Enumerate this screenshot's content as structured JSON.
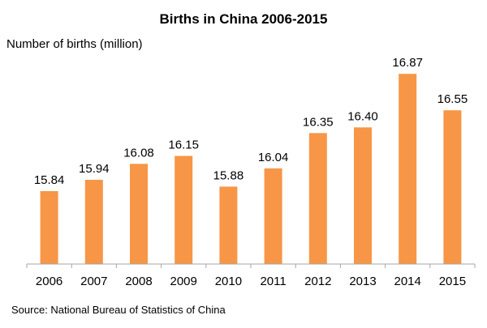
{
  "chart_data": {
    "type": "bar",
    "title": "Births in China 2006-2015",
    "xlabel": "",
    "ylabel": "Number  of births (million)",
    "categories": [
      "2006",
      "2007",
      "2008",
      "2009",
      "2010",
      "2011",
      "2012",
      "2013",
      "2014",
      "2015"
    ],
    "values": [
      15.84,
      15.94,
      16.08,
      16.15,
      15.88,
      16.04,
      16.35,
      16.4,
      16.87,
      16.55
    ],
    "data_labels": [
      "15.84",
      "15.94",
      "16.08",
      "16.15",
      "15.88",
      "16.04",
      "16.35",
      "16.40",
      "16.87",
      "16.55"
    ],
    "ylim": [
      15.2,
      16.95
    ],
    "grid": false,
    "legend": "none",
    "bar_color": "#F79646",
    "axis_color": "#A6A6A6",
    "source": "Source: National Bureau of Statistics of China"
  }
}
